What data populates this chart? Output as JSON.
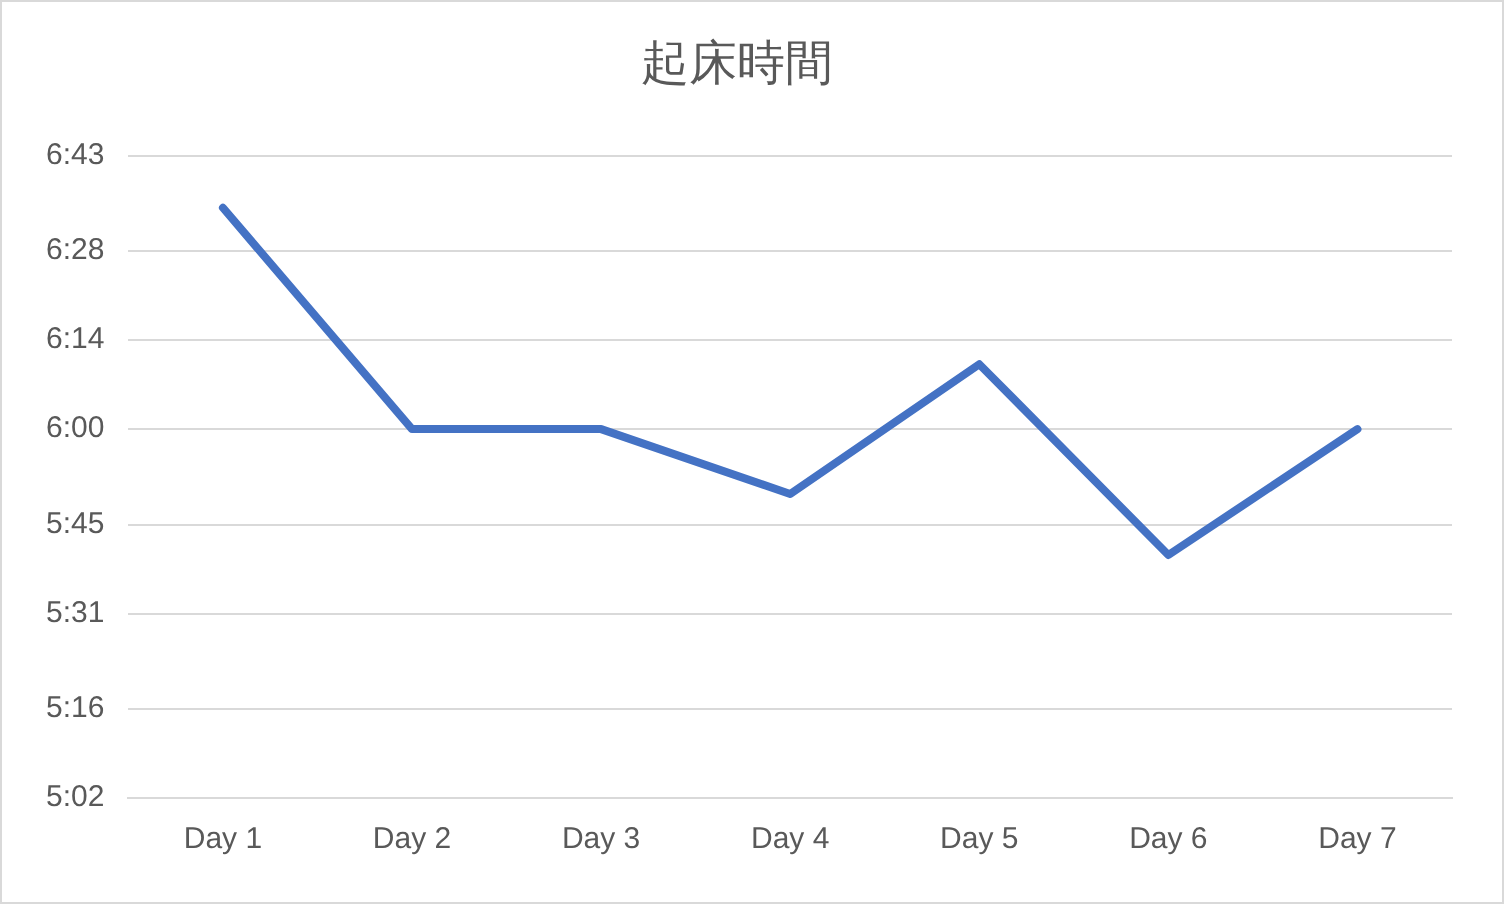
{
  "chart_data": {
    "type": "line",
    "title": "起床時間",
    "categories": [
      "Day 1",
      "Day 2",
      "Day 3",
      "Day 4",
      "Day 5",
      "Day 6",
      "Day 7"
    ],
    "series": [
      {
        "color": "#4472c4",
        "values": [
          6.58,
          6,
          6,
          5.83,
          6.17,
          5.67,
          6
        ]
      }
    ],
    "ylim": [
      5.0333,
      6.7167
    ],
    "yticks": [
      {
        "value": 5.0333,
        "label": "5:02"
      },
      {
        "value": 5.2667,
        "label": "5:16"
      },
      {
        "value": 5.5167,
        "label": "5:31"
      },
      {
        "value": 5.75,
        "label": "5:45"
      },
      {
        "value": 6,
        "label": "6:00"
      },
      {
        "value": 6.2333,
        "label": "6:14"
      },
      {
        "value": 6.4667,
        "label": "6:28"
      },
      {
        "value": 6.7167,
        "label": "6:43"
      }
    ],
    "grid": "y",
    "legend": false,
    "marker": "none",
    "line_style": "solid"
  }
}
